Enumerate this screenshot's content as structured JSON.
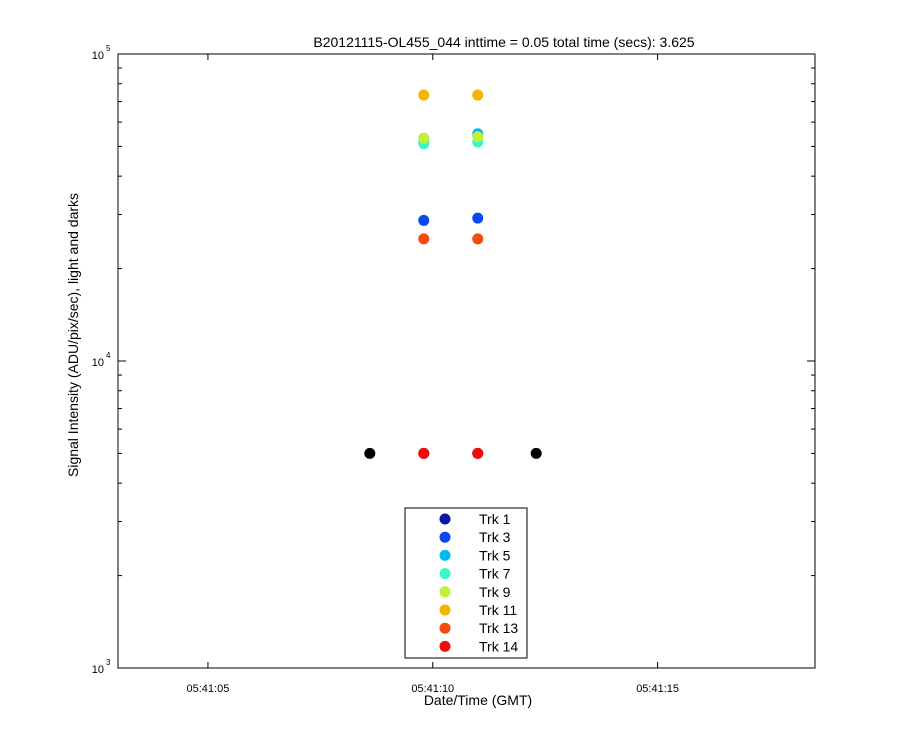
{
  "chart_data": {
    "type": "scatter",
    "title": "B20121115-OL455_044 inttime = 0.05 total time (secs): 3.625",
    "xlabel": "Date/Time (GMT)",
    "ylabel": "Signal Intensity (ADU/pix/sec), light and darks",
    "yscale": "log",
    "xlim": [
      "05:41:03",
      "05:41:18.5"
    ],
    "ylim": [
      1000,
      100000
    ],
    "x_ticks": [
      "05:41:05",
      "05:41:10",
      "05:41:15"
    ],
    "y_ticks": [
      {
        "base": "10",
        "exp": "3",
        "value": 1000
      },
      {
        "base": "10",
        "exp": "4",
        "value": 10000
      },
      {
        "base": "10",
        "exp": "5",
        "value": 100000
      }
    ],
    "grid": false,
    "legend_position": "bottom-center",
    "series": [
      {
        "name": "Trk 1",
        "color": "#0a14a8",
        "x": [
          "05:41:09.8",
          "05:41:11"
        ],
        "y": [
          5000,
          5000
        ]
      },
      {
        "name": "Trk 3",
        "color": "#0a46f5",
        "x": [
          "05:41:09.8",
          "05:41:11"
        ],
        "y": [
          28700,
          29200
        ]
      },
      {
        "name": "Trk 5",
        "color": "#00b9f0",
        "x": [
          "05:41:09.8",
          "05:41:11"
        ],
        "y": [
          51500,
          55000
        ]
      },
      {
        "name": "Trk 7",
        "color": "#3cf5c8",
        "x": [
          "05:41:09.8",
          "05:41:11"
        ],
        "y": [
          51000,
          51700
        ]
      },
      {
        "name": "Trk 9",
        "color": "#bef03c",
        "x": [
          "05:41:09.8",
          "05:41:11"
        ],
        "y": [
          53200,
          53800
        ]
      },
      {
        "name": "Trk 11",
        "color": "#f5b400",
        "x": [
          "05:41:09.8",
          "05:41:11"
        ],
        "y": [
          73500,
          73500
        ]
      },
      {
        "name": "Trk 13",
        "color": "#f54b0f",
        "x": [
          "05:41:09.8",
          "05:41:11"
        ],
        "y": [
          25000,
          25000
        ]
      },
      {
        "name": "Trk 14",
        "color": "#f50a0a",
        "x": [
          "05:41:09.8",
          "05:41:11"
        ],
        "y": [
          5000,
          5000
        ]
      }
    ],
    "darks": {
      "color": "#000000",
      "x": [
        "05:41:08.6",
        "05:41:12.3"
      ],
      "y": [
        5000,
        5000
      ]
    }
  }
}
